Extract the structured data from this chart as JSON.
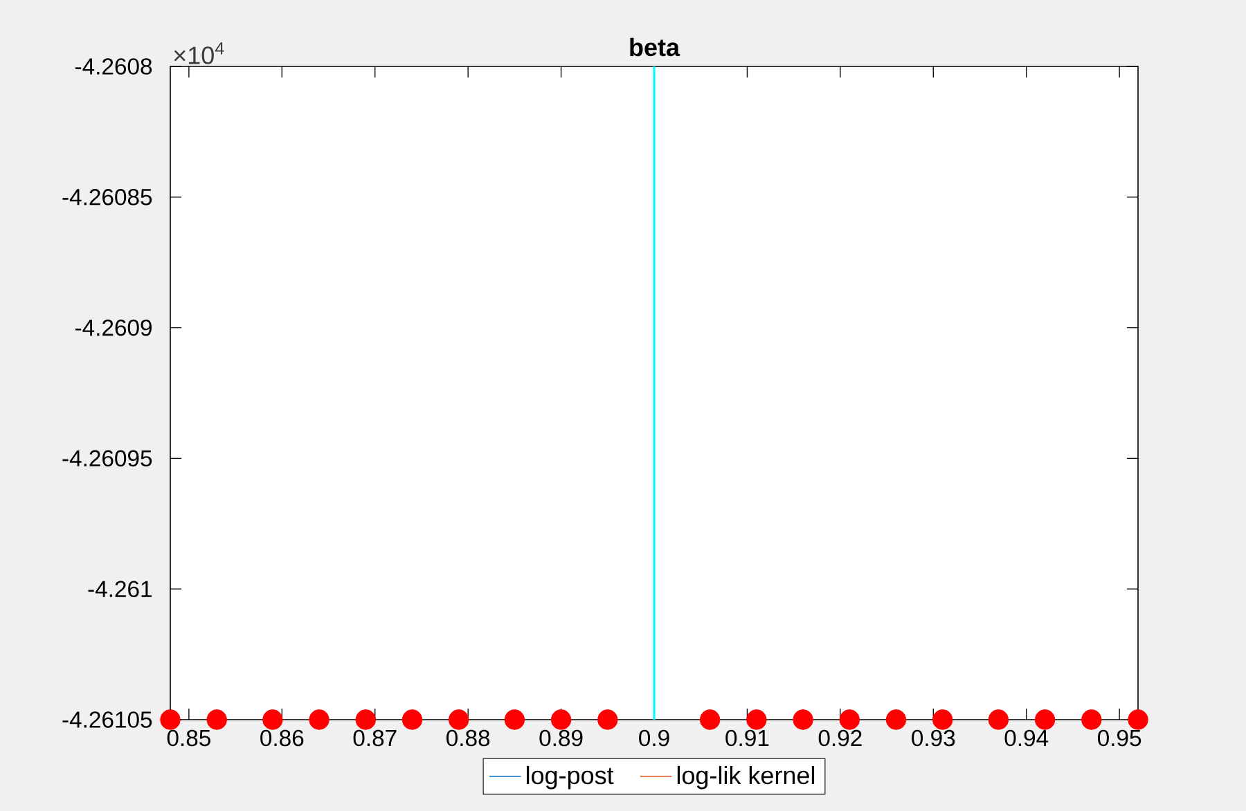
{
  "chart_data": {
    "type": "scatter",
    "title": "beta",
    "x": [
      0.848,
      0.853,
      0.859,
      0.864,
      0.869,
      0.874,
      0.879,
      0.885,
      0.89,
      0.895,
      0.906,
      0.911,
      0.916,
      0.921,
      0.926,
      0.931,
      0.937,
      0.942,
      0.947,
      0.952
    ],
    "series": [
      {
        "name": "log-post",
        "type": "line",
        "color": "#0072bd",
        "values": [
          null,
          null,
          null,
          null,
          null,
          null,
          null,
          null,
          null,
          null,
          null,
          null,
          null,
          null,
          null,
          null,
          null,
          null,
          null,
          null
        ]
      },
      {
        "name": "log-lik kernel",
        "type": "line",
        "color": "#d95319",
        "values": [
          null,
          null,
          null,
          null,
          null,
          null,
          null,
          null,
          null,
          null,
          null,
          null,
          null,
          null,
          null,
          null,
          null,
          null,
          null,
          null
        ]
      },
      {
        "color": "#ff0000",
        "marker": "circle",
        "values": [
          -4.26105,
          -4.26105,
          -4.26105,
          -4.26105,
          -4.26105,
          -4.26105,
          -4.26105,
          -4.26105,
          -4.26105,
          -4.26105,
          -4.26105,
          -4.26105,
          -4.26105,
          -4.26105,
          -4.26105,
          -4.26105,
          -4.26105,
          -4.26105,
          -4.26105,
          -4.26105
        ]
      }
    ],
    "xlim": [
      0.848,
      0.952
    ],
    "xticks": [
      0.85,
      0.86,
      0.87,
      0.88,
      0.89,
      0.9,
      0.91,
      0.92,
      0.93,
      0.94,
      0.95
    ],
    "ylim": [
      -4.26105,
      -4.2608
    ],
    "yticks": [
      -4.26105,
      -4.261,
      -4.26095,
      -4.2609,
      -4.26085,
      -4.2608
    ],
    "ref_lines": [
      {
        "axis": "x",
        "value": 0.9,
        "color": "#00ffff"
      }
    ],
    "annotations": [
      "×10$^{4}$"
    ],
    "legend": "bottom"
  }
}
